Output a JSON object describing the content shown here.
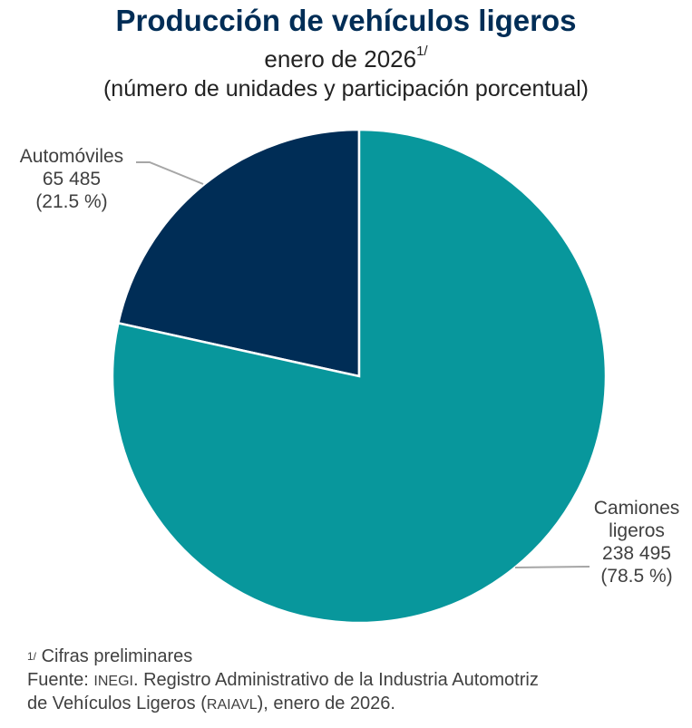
{
  "header": {
    "title": "Producción de vehículos ligeros",
    "subtitle": "enero de 2026",
    "subtitle_note": "1/",
    "subtitle2": "(número de unidades y participación porcentual)"
  },
  "chart_data": {
    "type": "pie",
    "title": "Producción de vehículos ligeros",
    "subtitle": "enero de 2026 (número de unidades y participación porcentual)",
    "slices": [
      {
        "label": "Automóviles",
        "value": 65485,
        "value_label": "65 485",
        "percent": 21.5,
        "percent_label": "(21.5 %)",
        "color": "#002d56"
      },
      {
        "label": "Camiones ligeros",
        "label_line1": "Camiones",
        "label_line2": "ligeros",
        "value": 238495,
        "value_label": "238 495",
        "percent": 78.5,
        "percent_label": "(78.5 %)",
        "color": "#08979c"
      }
    ],
    "start_angle": "12 o'clock",
    "direction": "counter-clockwise for first slice",
    "legend": "none"
  },
  "footer": {
    "note_marker": "1/",
    "note_text": "Cifras preliminares",
    "source_prefix": "Fuente: ",
    "source_org": "INEGI",
    "source_mid": ". Registro Administrativo de la Industria Automotriz",
    "source_line2_a": "de Vehículos Ligeros (",
    "source_acronym": "RAIAVL",
    "source_line2_b": "), enero de 2026."
  }
}
